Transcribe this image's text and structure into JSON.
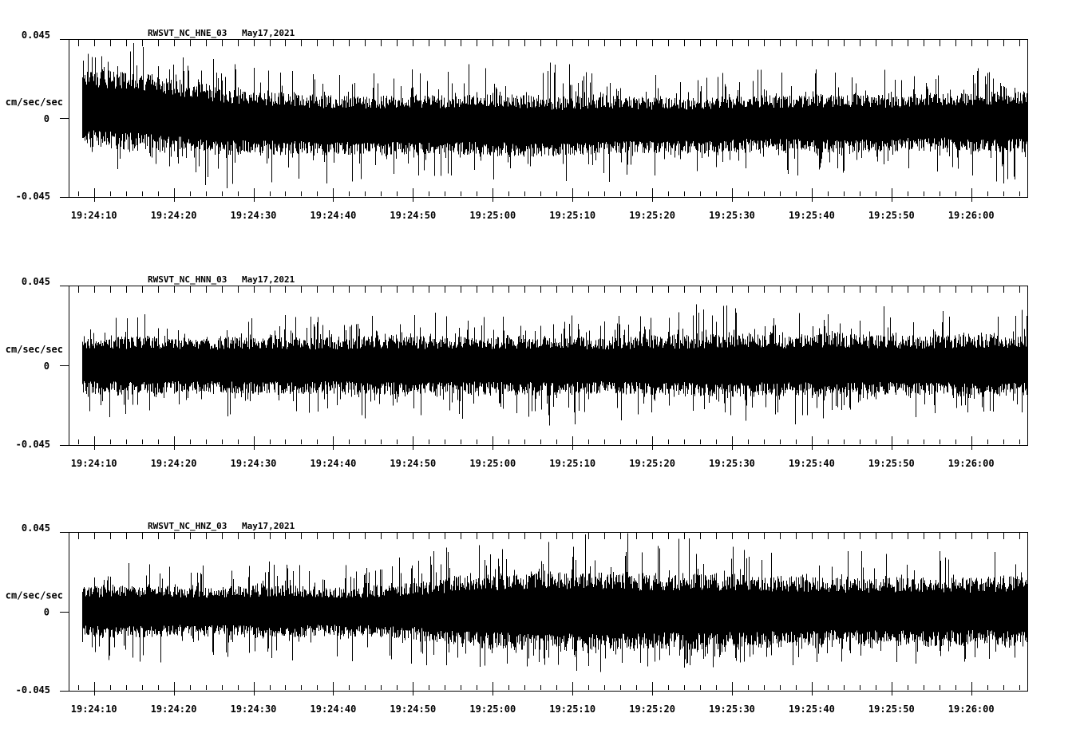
{
  "page": {
    "background": "#ffffff",
    "ink": "#000000"
  },
  "chart_data": [
    {
      "type": "line",
      "panel": "top",
      "station_channel": "RWSVT_NC_HNE_03",
      "date": "May17,2021",
      "ylabel": "cm/sec/sec",
      "ytick_labels": {
        "max": "0.045",
        "zero": "0",
        "min": "-0.045"
      },
      "ylim": [
        -0.045,
        0.045
      ],
      "xtick_labels": [
        "19:24:10",
        "19:24:20",
        "19:24:30",
        "19:24:40",
        "19:24:50",
        "19:25:00",
        "19:25:10",
        "19:25:20",
        "19:25:30",
        "19:25:40",
        "19:25:50",
        "19:26:00"
      ],
      "noise_seed": 11,
      "envelope": {
        "t": [
          0.0,
          0.05,
          0.1,
          0.15,
          0.2,
          0.25,
          0.3,
          0.35,
          0.4,
          0.45,
          0.5,
          0.55,
          0.6,
          0.65,
          0.7,
          0.75,
          0.8,
          0.85,
          0.9,
          0.95,
          1.0
        ],
        "band_amp": [
          0.022,
          0.022,
          0.021,
          0.019,
          0.018,
          0.017,
          0.017,
          0.017,
          0.017,
          0.018,
          0.017,
          0.017,
          0.016,
          0.016,
          0.016,
          0.016,
          0.017,
          0.016,
          0.016,
          0.017,
          0.018
        ],
        "spike_up": [
          0.036,
          0.042,
          0.038,
          0.034,
          0.032,
          0.031,
          0.03,
          0.032,
          0.035,
          0.033,
          0.038,
          0.034,
          0.032,
          0.031,
          0.032,
          0.03,
          0.032,
          0.034,
          0.031,
          0.033,
          0.038
        ],
        "spike_dn": [
          0.032,
          0.038,
          0.036,
          0.04,
          0.034,
          0.036,
          0.033,
          0.031,
          0.033,
          0.036,
          0.032,
          0.035,
          0.034,
          0.032,
          0.03,
          0.032,
          0.031,
          0.03,
          0.032,
          0.031,
          0.042
        ],
        "center": [
          0.006,
          0.004,
          0.001,
          -0.002,
          -0.003,
          -0.004,
          -0.004,
          -0.004,
          -0.004,
          -0.004,
          -0.005,
          -0.004,
          -0.004,
          -0.004,
          -0.003,
          -0.003,
          -0.003,
          -0.003,
          -0.002,
          -0.002,
          -0.002
        ]
      }
    },
    {
      "type": "line",
      "panel": "middle",
      "station_channel": "RWSVT_NC_HNN_03",
      "date": "May17,2021",
      "ylabel": "cm/sec/sec",
      "ytick_labels": {
        "max": "0.045",
        "zero": "0",
        "min": "-0.045"
      },
      "ylim": [
        -0.045,
        0.045
      ],
      "xtick_labels": [
        "19:24:10",
        "19:24:20",
        "19:24:30",
        "19:24:40",
        "19:24:50",
        "19:25:00",
        "19:25:10",
        "19:25:20",
        "19:25:30",
        "19:25:40",
        "19:25:50",
        "19:26:00"
      ],
      "noise_seed": 22,
      "envelope": {
        "t": [
          0.0,
          0.05,
          0.1,
          0.15,
          0.2,
          0.25,
          0.3,
          0.35,
          0.4,
          0.45,
          0.5,
          0.55,
          0.6,
          0.65,
          0.7,
          0.75,
          0.8,
          0.85,
          0.9,
          0.95,
          1.0
        ],
        "band_amp": [
          0.016,
          0.017,
          0.016,
          0.016,
          0.017,
          0.016,
          0.017,
          0.017,
          0.016,
          0.017,
          0.017,
          0.016,
          0.017,
          0.017,
          0.018,
          0.017,
          0.018,
          0.017,
          0.017,
          0.018,
          0.017
        ],
        "spike_up": [
          0.028,
          0.03,
          0.028,
          0.027,
          0.03,
          0.032,
          0.028,
          0.03,
          0.033,
          0.03,
          0.028,
          0.03,
          0.032,
          0.035,
          0.033,
          0.035,
          0.032,
          0.034,
          0.033,
          0.035,
          0.032
        ],
        "spike_dn": [
          0.03,
          0.032,
          0.035,
          0.03,
          0.028,
          0.033,
          0.03,
          0.028,
          0.032,
          0.03,
          0.035,
          0.032,
          0.03,
          0.028,
          0.032,
          0.034,
          0.03,
          0.032,
          0.03,
          0.028,
          0.03
        ],
        "center": [
          0,
          0,
          0,
          0,
          0,
          0,
          0,
          0,
          0,
          0,
          0,
          0,
          0,
          0,
          0,
          0,
          0,
          0,
          0,
          0,
          0
        ]
      }
    },
    {
      "type": "line",
      "panel": "bottom",
      "station_channel": "RWSVT_NC_HNZ_03",
      "date": "May17,2021",
      "ylabel": "cm/sec/sec",
      "ytick_labels": {
        "max": "0.045",
        "zero": "0",
        "min": "-0.045"
      },
      "ylim": [
        -0.045,
        0.045
      ],
      "xtick_labels": [
        "19:24:10",
        "19:24:20",
        "19:24:30",
        "19:24:40",
        "19:24:50",
        "19:25:00",
        "19:25:10",
        "19:25:20",
        "19:25:30",
        "19:25:40",
        "19:25:50",
        "19:26:00"
      ],
      "noise_seed": 33,
      "envelope": {
        "t": [
          0.0,
          0.05,
          0.1,
          0.15,
          0.2,
          0.25,
          0.3,
          0.35,
          0.4,
          0.45,
          0.5,
          0.55,
          0.6,
          0.65,
          0.7,
          0.75,
          0.8,
          0.85,
          0.9,
          0.95,
          1.0
        ],
        "band_amp": [
          0.014,
          0.015,
          0.014,
          0.014,
          0.015,
          0.014,
          0.014,
          0.016,
          0.02,
          0.022,
          0.023,
          0.022,
          0.021,
          0.022,
          0.021,
          0.02,
          0.019,
          0.019,
          0.02,
          0.019,
          0.021
        ],
        "spike_up": [
          0.027,
          0.029,
          0.027,
          0.026,
          0.029,
          0.027,
          0.028,
          0.032,
          0.041,
          0.044,
          0.046,
          0.046,
          0.044,
          0.046,
          0.04,
          0.038,
          0.036,
          0.038,
          0.036,
          0.038,
          0.042
        ],
        "spike_dn": [
          0.027,
          0.029,
          0.031,
          0.027,
          0.029,
          0.027,
          0.029,
          0.03,
          0.033,
          0.031,
          0.033,
          0.035,
          0.031,
          0.033,
          0.031,
          0.031,
          0.029,
          0.031,
          0.029,
          0.029,
          0.033
        ],
        "center": [
          0,
          0,
          0,
          0,
          0,
          0,
          0,
          0,
          0,
          0,
          0,
          0,
          0,
          0,
          0,
          0,
          0,
          0,
          0,
          0,
          0
        ]
      }
    }
  ]
}
